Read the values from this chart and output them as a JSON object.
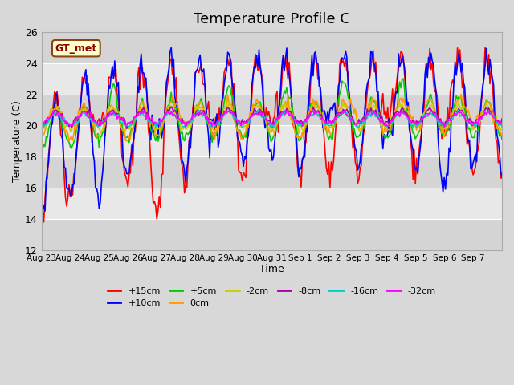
{
  "title": "Temperature Profile C",
  "xlabel": "Time",
  "ylabel": "Temperature (C)",
  "ylim": [
    12,
    26
  ],
  "yticks": [
    12,
    14,
    16,
    18,
    20,
    22,
    24,
    26
  ],
  "series_labels": [
    "+15cm",
    "+10cm",
    "+5cm",
    "0cm",
    "-2cm",
    "-8cm",
    "-16cm",
    "-32cm"
  ],
  "series_colors": [
    "#ff0000",
    "#0000ff",
    "#00cc00",
    "#ff9900",
    "#cccc00",
    "#aa00aa",
    "#00cccc",
    "#ff00ff"
  ],
  "xtick_labels": [
    "Aug 23",
    "Aug 24",
    "Aug 25",
    "Aug 26",
    "Aug 27",
    "Aug 28",
    "Aug 29",
    "Aug 30",
    "Aug 31",
    "Sep 1",
    "Sep 2",
    "Sep 3",
    "Sep 4",
    "Sep 5",
    "Sep 6",
    "Sep 7"
  ],
  "bg_color": "#e8e8e8",
  "legend_text": "GT_met",
  "legend_bg": "#ffffcc",
  "legend_edge": "#8b4513",
  "title_fontsize": 13
}
